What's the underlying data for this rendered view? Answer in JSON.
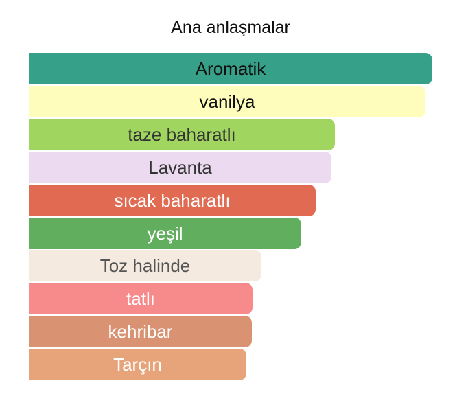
{
  "chart_data": {
    "type": "bar",
    "title": "Ana anlaşmalar",
    "categories": [
      "Aromatik",
      "vanilya",
      "taze baharatlı",
      "Lavanta",
      "sıcak baharatlı",
      "yeşil",
      "Toz halinde",
      "tatlı",
      "kehribar",
      "Tarçın"
    ],
    "values": [
      100,
      98.3,
      75.9,
      75.0,
      71.1,
      67.6,
      57.7,
      55.5,
      55.3,
      53.9
    ],
    "colors": [
      "#37a089",
      "#fefdbb",
      "#a0d560",
      "#ecdaf0",
      "#e06a52",
      "#62ae5f",
      "#f4eadf",
      "#f78b8b",
      "#d99373",
      "#e7a47b"
    ],
    "label_colors": [
      "#111111",
      "#111111",
      "#333333",
      "#333333",
      "#ffffff",
      "#ffffff",
      "#555555",
      "#ffffff",
      "#ffffff",
      "#ffffff"
    ],
    "xlim": [
      0,
      100
    ]
  }
}
